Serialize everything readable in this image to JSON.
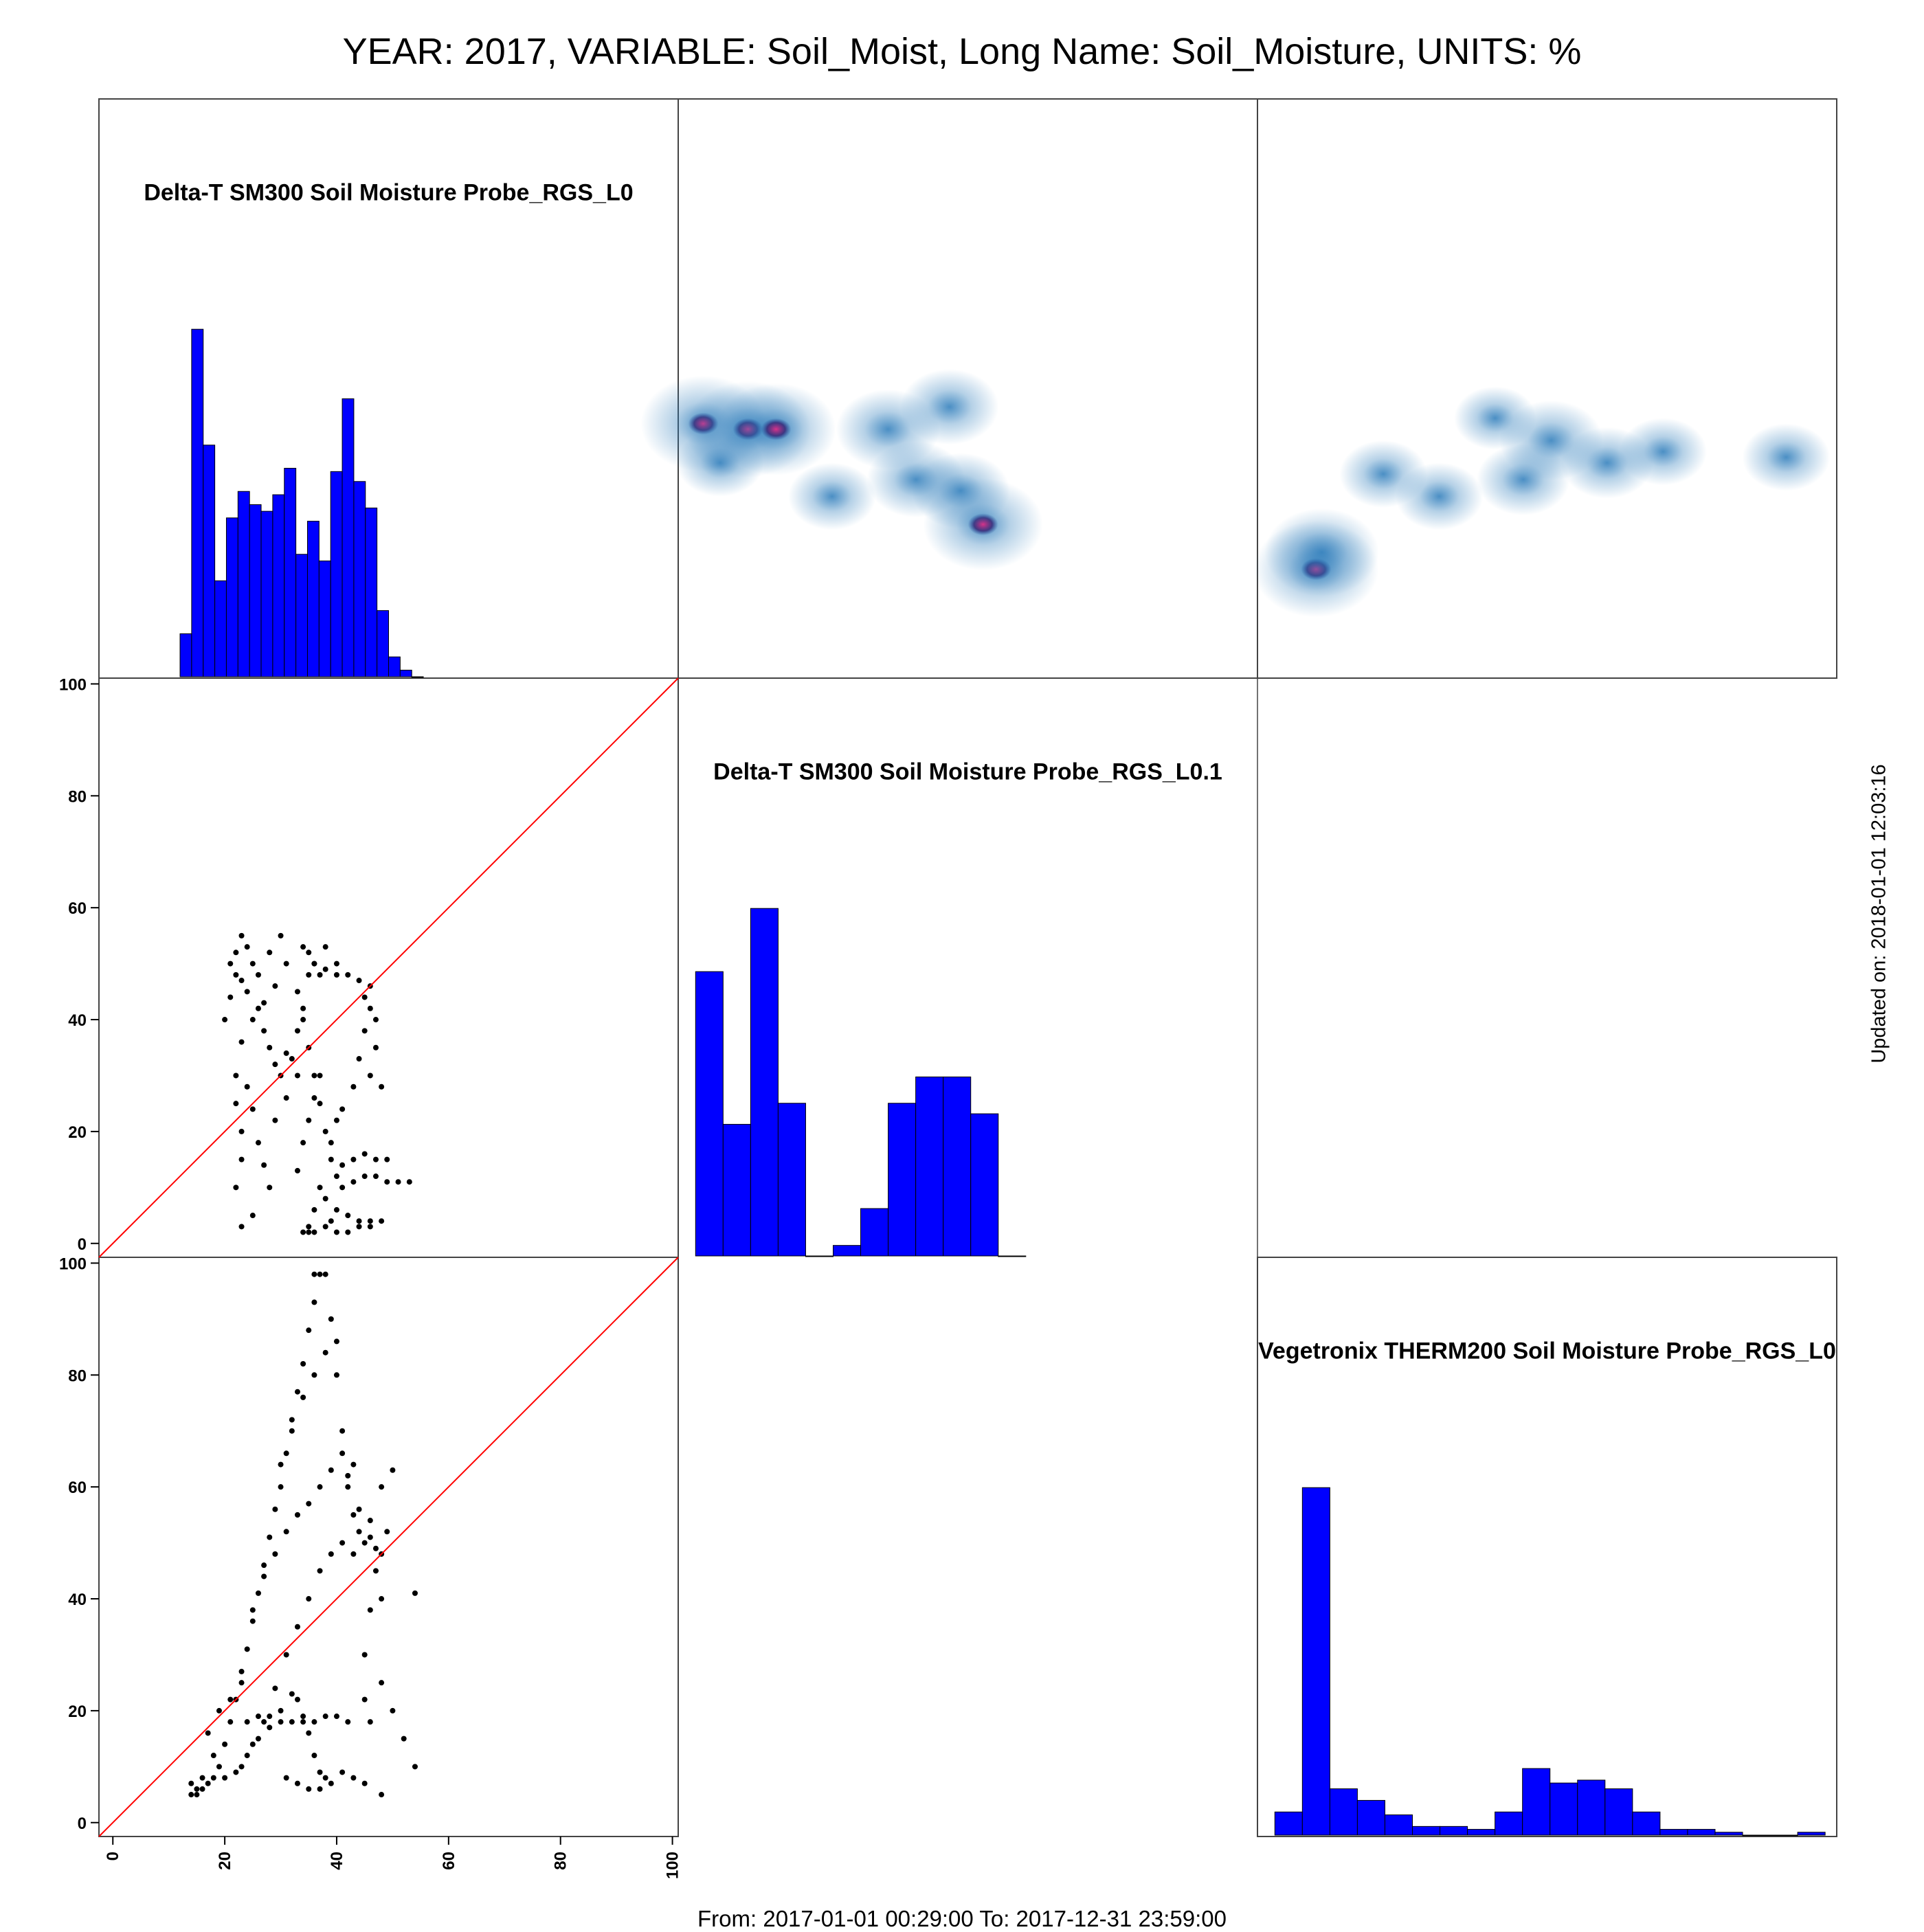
{
  "title": "YEAR: 2017, VARIABLE: Soil_Moist, Long Name: Soil_Moisture, UNITS: %",
  "footer": "From: 2017-01-01 00:29:00 To: 2017-12-31 23:59:00",
  "updated": "Updated on: 2018-01-01 12:03:16",
  "colors": {
    "hist_fill": "#0000ff",
    "diagonal": "#ff0000",
    "points": "#000000",
    "density": "#2b7bba"
  },
  "chart_data": {
    "type": "scatter",
    "layout": "pairs-matrix",
    "variables": [
      "Delta-T SM300 Soil Moisture Probe_RGS_L0",
      "Delta-T SM300 Soil Moisture Probe_RGS_L0.1",
      "Vegetronix THERM200 Soil Moisture Probe_RGS_L0"
    ],
    "axis_range": [
      0,
      100
    ],
    "ticks": [
      0,
      20,
      40,
      60,
      80,
      100
    ],
    "tick_labels": [
      "0",
      "20",
      "40",
      "60",
      "80",
      "100"
    ],
    "diagonal_histograms": [
      {
        "variable": "Delta-T SM300 Soil Moisture Probe_RGS_L0",
        "bins": [
          12,
          14,
          16,
          18,
          20,
          22,
          24,
          26,
          28,
          30,
          32,
          34,
          36,
          38,
          40,
          42,
          44,
          46,
          48,
          50,
          52,
          54
        ],
        "counts": [
          13,
          105,
          70,
          29,
          48,
          56,
          52,
          50,
          55,
          63,
          37,
          47,
          35,
          62,
          84,
          59,
          51,
          20,
          6,
          2,
          0
        ]
      },
      {
        "variable": "Delta-T SM300 Soil Moisture Probe_RGS_L0.1",
        "bins": [
          0,
          5,
          10,
          15,
          20,
          25,
          30,
          35,
          40,
          45,
          50,
          55,
          60
        ],
        "counts": [
          54,
          25,
          66,
          29,
          0,
          2,
          9,
          29,
          34,
          34,
          27,
          0
        ]
      },
      {
        "variable": "Vegetronix THERM200 Soil Moisture Probe_RGS_L0",
        "bins": [
          0,
          5,
          10,
          15,
          20,
          25,
          30,
          35,
          40,
          45,
          50,
          55,
          60,
          65,
          70,
          75,
          80,
          85,
          90,
          95,
          100
        ],
        "counts": [
          8,
          120,
          16,
          12,
          7,
          3,
          3,
          2,
          8,
          23,
          18,
          19,
          16,
          8,
          2,
          2,
          1,
          0,
          0,
          1
        ]
      }
    ],
    "scatter_panels": [
      {
        "x": "Delta-T SM300 Soil Moisture Probe_RGS_L0",
        "y": "Delta-T SM300 Soil Moisture Probe_RGS_L0.1",
        "reference_line": "y = x",
        "points": [
          [
            22,
            48
          ],
          [
            22,
            52
          ],
          [
            23,
            55
          ],
          [
            21,
            44
          ],
          [
            20,
            40
          ],
          [
            21,
            50
          ],
          [
            23,
            47
          ],
          [
            24,
            53
          ],
          [
            25,
            50
          ],
          [
            24,
            45
          ],
          [
            26,
            42
          ],
          [
            27,
            38
          ],
          [
            28,
            35
          ],
          [
            29,
            32
          ],
          [
            30,
            30
          ],
          [
            31,
            34
          ],
          [
            32,
            33
          ],
          [
            26,
            48
          ],
          [
            28,
            52
          ],
          [
            30,
            55
          ],
          [
            31,
            50
          ],
          [
            29,
            46
          ],
          [
            27,
            43
          ],
          [
            25,
            40
          ],
          [
            23,
            36
          ],
          [
            22,
            30
          ],
          [
            22,
            25
          ],
          [
            23,
            20
          ],
          [
            23,
            15
          ],
          [
            22,
            10
          ],
          [
            24,
            28
          ],
          [
            25,
            24
          ],
          [
            26,
            18
          ],
          [
            27,
            14
          ],
          [
            28,
            10
          ],
          [
            29,
            22
          ],
          [
            31,
            26
          ],
          [
            33,
            30
          ],
          [
            33,
            38
          ],
          [
            34,
            42
          ],
          [
            35,
            48
          ],
          [
            36,
            50
          ],
          [
            38,
            49
          ],
          [
            40,
            48
          ],
          [
            42,
            48
          ],
          [
            44,
            47
          ],
          [
            46,
            46
          ],
          [
            46,
            42
          ],
          [
            45,
            38
          ],
          [
            47,
            35
          ],
          [
            46,
            30
          ],
          [
            48,
            28
          ],
          [
            45,
            44
          ],
          [
            47,
            40
          ],
          [
            44,
            33
          ],
          [
            43,
            28
          ],
          [
            34,
            53
          ],
          [
            35,
            52
          ],
          [
            36,
            50
          ],
          [
            37,
            48
          ],
          [
            38,
            53
          ],
          [
            40,
            50
          ],
          [
            33,
            45
          ],
          [
            34,
            40
          ],
          [
            35,
            35
          ],
          [
            36,
            30
          ],
          [
            37,
            25
          ],
          [
            38,
            20
          ],
          [
            39,
            15
          ],
          [
            40,
            12
          ],
          [
            41,
            10
          ],
          [
            43,
            11
          ],
          [
            45,
            12
          ],
          [
            47,
            12
          ],
          [
            49,
            11
          ],
          [
            51,
            11
          ],
          [
            53,
            11
          ],
          [
            39,
            18
          ],
          [
            41,
            14
          ],
          [
            43,
            15
          ],
          [
            45,
            16
          ],
          [
            47,
            15
          ],
          [
            49,
            15
          ],
          [
            40,
            6
          ],
          [
            42,
            5
          ],
          [
            44,
            4
          ],
          [
            46,
            4
          ],
          [
            48,
            4
          ],
          [
            38,
            3
          ],
          [
            36,
            2
          ],
          [
            35,
            3
          ],
          [
            34,
            2
          ],
          [
            37,
            10
          ],
          [
            38,
            8
          ],
          [
            36,
            6
          ],
          [
            39,
            4
          ],
          [
            40,
            2
          ],
          [
            42,
            2
          ],
          [
            44,
            3
          ],
          [
            46,
            3
          ],
          [
            25,
            5
          ],
          [
            23,
            3
          ],
          [
            33,
            13
          ],
          [
            34,
            18
          ],
          [
            35,
            22
          ],
          [
            36,
            26
          ],
          [
            37,
            30
          ],
          [
            35,
            2
          ],
          [
            40,
            22
          ],
          [
            41,
            24
          ]
        ]
      },
      {
        "x": "Delta-T SM300 Soil Moisture Probe_RGS_L0",
        "y": "Vegetronix THERM200 Soil Moisture Probe_RGS_L0",
        "reference_line": "y = x",
        "points": [
          [
            14,
            5
          ],
          [
            15,
            6
          ],
          [
            16,
            6
          ],
          [
            17,
            7
          ],
          [
            18,
            8
          ],
          [
            19,
            10
          ],
          [
            20,
            14
          ],
          [
            21,
            18
          ],
          [
            22,
            22
          ],
          [
            23,
            27
          ],
          [
            24,
            31
          ],
          [
            25,
            36
          ],
          [
            26,
            41
          ],
          [
            27,
            46
          ],
          [
            28,
            51
          ],
          [
            29,
            56
          ],
          [
            30,
            60
          ],
          [
            31,
            66
          ],
          [
            32,
            72
          ],
          [
            33,
            77
          ],
          [
            34,
            82
          ],
          [
            35,
            88
          ],
          [
            36,
            93
          ],
          [
            37,
            98
          ],
          [
            36,
            98
          ],
          [
            38,
            98
          ],
          [
            39,
            90
          ],
          [
            40,
            80
          ],
          [
            41,
            70
          ],
          [
            42,
            62
          ],
          [
            43,
            55
          ],
          [
            44,
            52
          ],
          [
            45,
            50
          ],
          [
            46,
            51
          ],
          [
            47,
            49
          ],
          [
            48,
            48
          ],
          [
            23,
            10
          ],
          [
            25,
            14
          ],
          [
            27,
            18
          ],
          [
            29,
            24
          ],
          [
            31,
            30
          ],
          [
            33,
            35
          ],
          [
            35,
            40
          ],
          [
            37,
            45
          ],
          [
            39,
            48
          ],
          [
            41,
            50
          ],
          [
            43,
            48
          ],
          [
            20,
            8
          ],
          [
            22,
            9
          ],
          [
            24,
            12
          ],
          [
            26,
            15
          ],
          [
            28,
            17
          ],
          [
            30,
            20
          ],
          [
            32,
            23
          ],
          [
            33,
            22
          ],
          [
            34,
            19
          ],
          [
            35,
            16
          ],
          [
            36,
            12
          ],
          [
            37,
            9
          ],
          [
            38,
            8
          ],
          [
            24,
            18
          ],
          [
            26,
            19
          ],
          [
            28,
            19
          ],
          [
            30,
            18
          ],
          [
            32,
            18
          ],
          [
            34,
            18
          ],
          [
            36,
            18
          ],
          [
            38,
            19
          ],
          [
            40,
            19
          ],
          [
            42,
            18
          ],
          [
            25,
            38
          ],
          [
            27,
            44
          ],
          [
            29,
            48
          ],
          [
            31,
            52
          ],
          [
            33,
            55
          ],
          [
            35,
            57
          ],
          [
            37,
            60
          ],
          [
            39,
            63
          ],
          [
            41,
            66
          ],
          [
            43,
            64
          ],
          [
            30,
            64
          ],
          [
            32,
            70
          ],
          [
            34,
            76
          ],
          [
            36,
            80
          ],
          [
            38,
            84
          ],
          [
            40,
            86
          ],
          [
            42,
            60
          ],
          [
            44,
            56
          ],
          [
            46,
            54
          ],
          [
            48,
            60
          ],
          [
            49,
            52
          ],
          [
            50,
            63
          ],
          [
            47,
            45
          ],
          [
            48,
            40
          ],
          [
            46,
            38
          ],
          [
            45,
            30
          ],
          [
            48,
            25
          ],
          [
            50,
            20
          ],
          [
            52,
            15
          ],
          [
            54,
            10
          ],
          [
            54,
            41
          ],
          [
            48,
            5
          ],
          [
            45,
            7
          ],
          [
            43,
            8
          ],
          [
            41,
            9
          ],
          [
            39,
            7
          ],
          [
            37,
            6
          ],
          [
            35,
            6
          ],
          [
            33,
            7
          ],
          [
            31,
            8
          ],
          [
            21,
            22
          ],
          [
            23,
            25
          ],
          [
            19,
            20
          ],
          [
            18,
            12
          ],
          [
            17,
            16
          ],
          [
            16,
            8
          ],
          [
            15,
            5
          ],
          [
            14,
            7
          ],
          [
            45,
            22
          ],
          [
            46,
            18
          ]
        ]
      }
    ],
    "density_panels": [
      {
        "x": "Delta-T SM300 Soil Moisture Probe_RGS_L0.1",
        "y": "Delta-T SM300 Soil Moisture Probe_RGS_L0",
        "peaks": [
          {
            "x": 2,
            "y": 43,
            "weight": 1.0
          },
          {
            "x": 10,
            "y": 42,
            "weight": 1.0
          },
          {
            "x": 15,
            "y": 42,
            "weight": 0.9
          },
          {
            "x": 35,
            "y": 42,
            "weight": 0.6
          },
          {
            "x": 46,
            "y": 46,
            "weight": 0.5
          },
          {
            "x": 52,
            "y": 25,
            "weight": 0.9
          },
          {
            "x": 40,
            "y": 33,
            "weight": 0.5
          },
          {
            "x": 48,
            "y": 31,
            "weight": 0.5
          },
          {
            "x": 5,
            "y": 36,
            "weight": 0.3
          },
          {
            "x": 25,
            "y": 30,
            "weight": 0.3
          }
        ]
      },
      {
        "x": "Vegetronix THERM200 Soil Moisture Probe_RGS_L0",
        "y": "Delta-T SM300 Soil Moisture Probe_RGS_L0",
        "peaks": [
          {
            "x": 8,
            "y": 17,
            "weight": 1.0
          },
          {
            "x": 9,
            "y": 20,
            "weight": 0.8
          },
          {
            "x": 50,
            "y": 40,
            "weight": 0.6
          },
          {
            "x": 45,
            "y": 33,
            "weight": 0.4
          },
          {
            "x": 60,
            "y": 36,
            "weight": 0.4
          },
          {
            "x": 92,
            "y": 37,
            "weight": 0.3
          },
          {
            "x": 30,
            "y": 30,
            "weight": 0.3
          },
          {
            "x": 20,
            "y": 34,
            "weight": 0.3
          },
          {
            "x": 70,
            "y": 38,
            "weight": 0.3
          },
          {
            "x": 40,
            "y": 44,
            "weight": 0.2
          }
        ]
      }
    ]
  }
}
